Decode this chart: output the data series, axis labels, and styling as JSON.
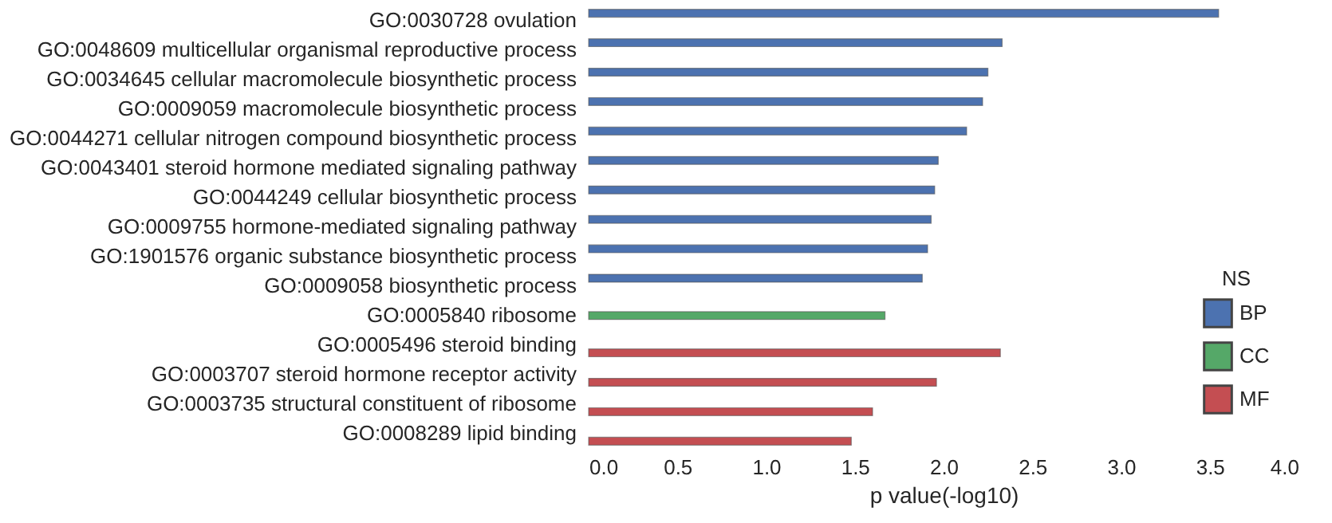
{
  "chart_data": {
    "type": "bar",
    "orientation": "horizontal",
    "xlabel": "p value(-log10)",
    "legend_title": "NS",
    "legend": "bottom right",
    "grid": false,
    "categories": [
      "GO:0030728 ovulation",
      "GO:0048609 multicellular organismal reproductive process",
      "GO:0034645 cellular macromolecule biosynthetic process",
      "GO:0009059 macromolecule biosynthetic process",
      "GO:0044271 cellular nitrogen compound biosynthetic process",
      "GO:0043401 steroid hormone mediated signaling pathway",
      "GO:0044249 cellular biosynthetic process",
      "GO:0009755 hormone-mediated signaling pathway",
      "GO:1901576 organic substance biosynthetic process",
      "GO:0009058 biosynthetic process",
      "GO:0005840 ribosome",
      "GO:0005496 steroid binding",
      "GO:0003707 steroid hormone receptor activity",
      "GO:0003735 structural constituent of ribosome",
      "GO:0008289 lipid binding"
    ],
    "xlim": [
      0,
      4
    ],
    "xticks": [
      {
        "value": 0,
        "label": "0.0"
      },
      {
        "value": 0.5,
        "label": "0.5"
      },
      {
        "value": 1,
        "label": "1.0"
      },
      {
        "value": 1.5,
        "label": "1.5"
      },
      {
        "value": 2,
        "label": "2.0"
      },
      {
        "value": 2.5,
        "label": "2.5"
      },
      {
        "value": 3,
        "label": "3.0"
      },
      {
        "value": 3.5,
        "label": "3.5"
      },
      {
        "value": 4,
        "label": "4.0"
      }
    ],
    "series": [
      {
        "name": "BP",
        "color": "#4c72b0",
        "values": [
          3.55,
          2.33,
          2.25,
          2.22,
          2.13,
          1.97,
          1.95,
          1.93,
          1.91,
          1.88,
          null,
          null,
          null,
          null,
          null
        ]
      },
      {
        "name": "CC",
        "color": "#55a868",
        "values": [
          null,
          null,
          null,
          null,
          null,
          null,
          null,
          null,
          null,
          null,
          1.67,
          null,
          null,
          null,
          null
        ]
      },
      {
        "name": "MF",
        "color": "#c44e52",
        "values": [
          null,
          null,
          null,
          null,
          null,
          null,
          null,
          null,
          null,
          null,
          null,
          2.32,
          1.96,
          1.6,
          1.48
        ]
      }
    ]
  }
}
